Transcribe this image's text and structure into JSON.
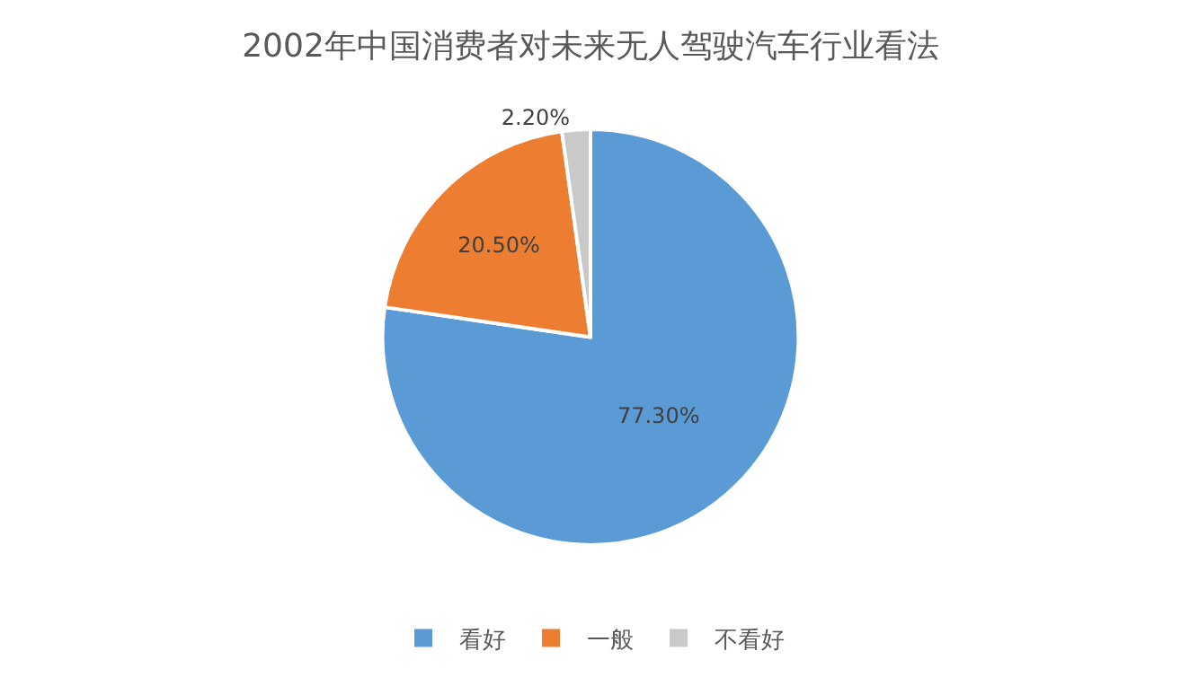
{
  "chart_data": {
    "type": "pie",
    "title": "2002年中国消费者对未来无人驾驶汽车行业看法",
    "categories": [
      "看好",
      "一般",
      "不看好"
    ],
    "values": [
      77.3,
      20.5,
      2.2
    ],
    "value_labels": [
      "77.30%",
      "20.50%",
      "2.20%"
    ],
    "colors": [
      "#5b9bd5",
      "#ed7d31",
      "#c9c9c9"
    ],
    "legend": "bottom"
  }
}
